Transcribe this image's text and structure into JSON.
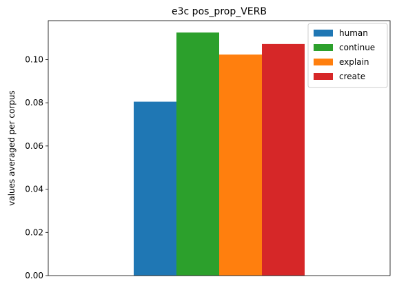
{
  "chart_data": {
    "type": "bar",
    "title": "e3c pos_prop_VERB",
    "xlabel": "",
    "ylabel": "values averaged per corpus",
    "categories": [
      ""
    ],
    "ylim": [
      0,
      0.118
    ],
    "yticks": [
      "0.00",
      "0.02",
      "0.04",
      "0.06",
      "0.08",
      "0.10"
    ],
    "ytick_values": [
      0,
      0.02,
      0.04,
      0.06,
      0.08,
      0.1
    ],
    "series": [
      {
        "name": "human",
        "values": [
          0.0805
        ],
        "color": "#1f77b4"
      },
      {
        "name": "continue",
        "values": [
          0.1125
        ],
        "color": "#2ca02c"
      },
      {
        "name": "explain",
        "values": [
          0.1023
        ],
        "color": "#ff7f0e"
      },
      {
        "name": "create",
        "values": [
          0.1072
        ],
        "color": "#d62728"
      }
    ],
    "legend_position": "top-right",
    "grid": false
  }
}
